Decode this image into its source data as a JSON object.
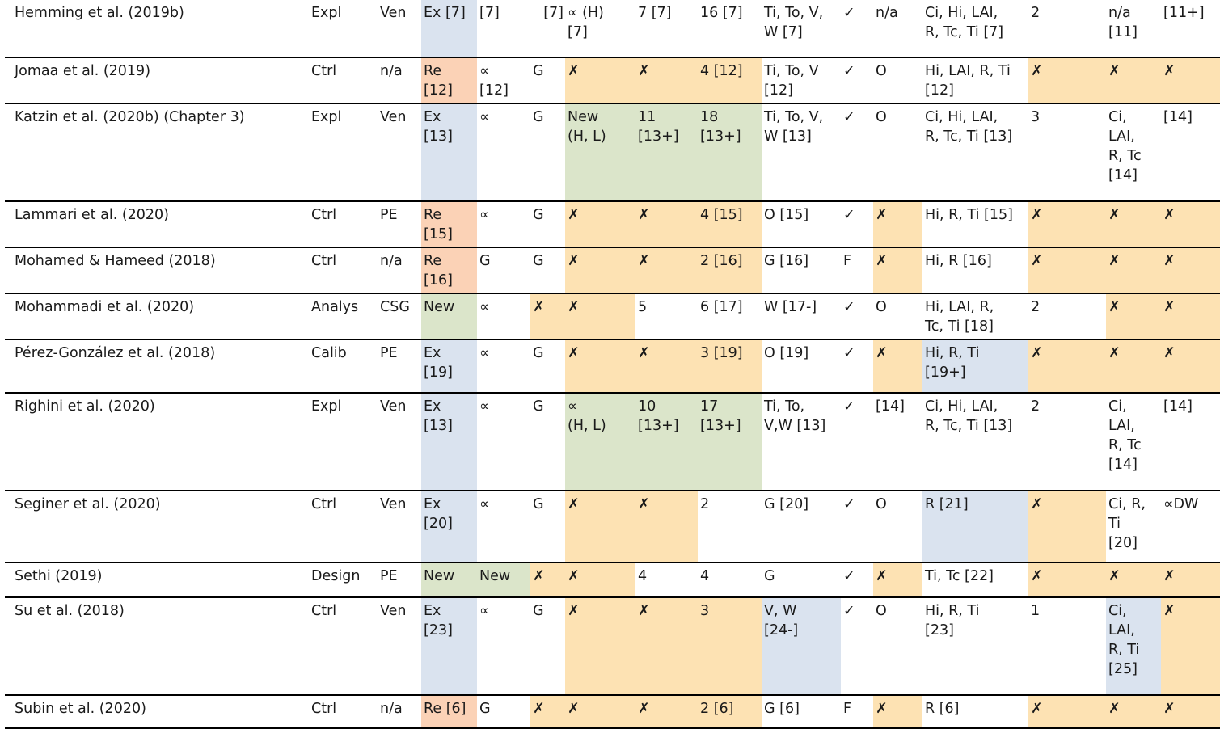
{
  "colors": {
    "blue": "#dae3ef",
    "orange": "#fde2b3",
    "salmon": "#fbd2b6",
    "green": "#dbe5ca"
  },
  "rows": [
    {
      "cells": [
        {
          "t": "Hemming et al. (2019b)"
        },
        {
          "t": "Expl"
        },
        {
          "t": "Ven"
        },
        {
          "t": "Ex [7]",
          "c": "blue"
        },
        {
          "t": "[7]"
        },
        {
          "t": "[7]",
          "a": "right"
        },
        {
          "t": "∝ (H)\n[7]"
        },
        {
          "t": "7 [7]"
        },
        {
          "t": "16 [7]"
        },
        {
          "t": "Ti, To, V,\nW [7]"
        },
        {
          "t": "✓"
        },
        {
          "t": "n/a"
        },
        {
          "t": "Ci, Hi, LAI,\nR, Tc, Ti [7]"
        },
        {
          "t": "2"
        },
        {
          "t": "n/a\n[11]"
        },
        {
          "t": "[11+]"
        }
      ]
    },
    {
      "cells": [
        {
          "t": "Jomaa et al. (2019)"
        },
        {
          "t": "Ctrl"
        },
        {
          "t": "n/a"
        },
        {
          "t": "Re\n[12]",
          "c": "salmon"
        },
        {
          "t": "∝\n[12]"
        },
        {
          "t": "G"
        },
        {
          "t": "✗",
          "c": "orange"
        },
        {
          "t": "✗",
          "c": "orange"
        },
        {
          "t": "4 [12]",
          "c": "orange"
        },
        {
          "t": "Ti, To, V\n[12]"
        },
        {
          "t": "✓"
        },
        {
          "t": "O"
        },
        {
          "t": "Hi, LAI, R, Ti\n[12]"
        },
        {
          "t": "✗",
          "c": "orange"
        },
        {
          "t": "✗",
          "c": "orange"
        },
        {
          "t": "✗",
          "c": "orange"
        }
      ]
    },
    {
      "cells": [
        {
          "t": "Katzin et al. (2020b) (Chapter 3)"
        },
        {
          "t": "Expl"
        },
        {
          "t": "Ven"
        },
        {
          "t": "Ex\n[13]",
          "c": "blue"
        },
        {
          "t": "∝"
        },
        {
          "t": "G"
        },
        {
          "t": "New\n(H, L)",
          "c": "green"
        },
        {
          "t": "11\n[13+]",
          "c": "green"
        },
        {
          "t": "18\n[13+]",
          "c": "green"
        },
        {
          "t": "Ti, To, V,\nW [13]"
        },
        {
          "t": "✓"
        },
        {
          "t": "O"
        },
        {
          "t": "Ci, Hi, LAI,\nR, Tc, Ti [13]"
        },
        {
          "t": "3"
        },
        {
          "t": "Ci,\nLAI,\nR, Tc\n[14]"
        },
        {
          "t": "[14]"
        }
      ]
    },
    {
      "cells": [
        {
          "t": "Lammari et al. (2020)"
        },
        {
          "t": "Ctrl"
        },
        {
          "t": "PE"
        },
        {
          "t": "Re\n[15]",
          "c": "salmon"
        },
        {
          "t": "∝"
        },
        {
          "t": "G"
        },
        {
          "t": "✗",
          "c": "orange"
        },
        {
          "t": "✗",
          "c": "orange"
        },
        {
          "t": "4 [15]",
          "c": "orange"
        },
        {
          "t": "O [15]"
        },
        {
          "t": "✓"
        },
        {
          "t": "✗",
          "c": "orange"
        },
        {
          "t": "Hi, R, Ti [15]"
        },
        {
          "t": "✗",
          "c": "orange"
        },
        {
          "t": "✗",
          "c": "orange"
        },
        {
          "t": "✗",
          "c": "orange"
        }
      ]
    },
    {
      "cells": [
        {
          "t": "Mohamed & Hameed (2018)"
        },
        {
          "t": "Ctrl"
        },
        {
          "t": "n/a"
        },
        {
          "t": "Re\n[16]",
          "c": "salmon"
        },
        {
          "t": "G"
        },
        {
          "t": "G"
        },
        {
          "t": "✗",
          "c": "orange"
        },
        {
          "t": "✗",
          "c": "orange"
        },
        {
          "t": "2 [16]",
          "c": "orange"
        },
        {
          "t": "G [16]"
        },
        {
          "t": "F"
        },
        {
          "t": "✗",
          "c": "orange"
        },
        {
          "t": "Hi, R [16]"
        },
        {
          "t": "✗",
          "c": "orange"
        },
        {
          "t": "✗",
          "c": "orange"
        },
        {
          "t": "✗",
          "c": "orange"
        }
      ]
    },
    {
      "cells": [
        {
          "t": "Mohammadi et al. (2020)"
        },
        {
          "t": "Analys"
        },
        {
          "t": "CSG"
        },
        {
          "t": "New",
          "c": "green"
        },
        {
          "t": "∝"
        },
        {
          "t": "✗",
          "c": "orange"
        },
        {
          "t": "✗",
          "c": "orange"
        },
        {
          "t": "5"
        },
        {
          "t": "6 [17]"
        },
        {
          "t": "W [17-]"
        },
        {
          "t": "✓"
        },
        {
          "t": "O"
        },
        {
          "t": "Hi, LAI, R,\nTc, Ti [18]"
        },
        {
          "t": "2"
        },
        {
          "t": "✗",
          "c": "orange"
        },
        {
          "t": "✗",
          "c": "orange"
        }
      ]
    },
    {
      "cells": [
        {
          "t": "Pérez-González et al. (2018)"
        },
        {
          "t": "Calib"
        },
        {
          "t": "PE"
        },
        {
          "t": "Ex\n[19]",
          "c": "blue"
        },
        {
          "t": "∝"
        },
        {
          "t": "G"
        },
        {
          "t": "✗",
          "c": "orange"
        },
        {
          "t": "✗",
          "c": "orange"
        },
        {
          "t": "3 [19]",
          "c": "orange"
        },
        {
          "t": "O [19]"
        },
        {
          "t": "✓"
        },
        {
          "t": "✗",
          "c": "orange"
        },
        {
          "t": "Hi, R, Ti\n[19+]",
          "c": "blue"
        },
        {
          "t": "✗",
          "c": "orange"
        },
        {
          "t": "✗",
          "c": "orange"
        },
        {
          "t": "✗",
          "c": "orange"
        }
      ]
    },
    {
      "cells": [
        {
          "t": "Righini et al. (2020)"
        },
        {
          "t": "Expl"
        },
        {
          "t": "Ven"
        },
        {
          "t": "Ex\n[13]",
          "c": "blue"
        },
        {
          "t": "∝"
        },
        {
          "t": "G"
        },
        {
          "t": "∝\n(H, L)",
          "c": "green"
        },
        {
          "t": "10\n[13+]",
          "c": "green"
        },
        {
          "t": "17\n[13+]",
          "c": "green"
        },
        {
          "t": "Ti, To,\nV,W [13]"
        },
        {
          "t": "✓"
        },
        {
          "t": "[14]"
        },
        {
          "t": "Ci, Hi, LAI,\nR, Tc, Ti [13]"
        },
        {
          "t": "2"
        },
        {
          "t": "Ci,\nLAI,\nR, Tc\n[14]"
        },
        {
          "t": "[14]"
        }
      ]
    },
    {
      "cells": [
        {
          "t": "Seginer et al. (2020)"
        },
        {
          "t": "Ctrl"
        },
        {
          "t": "Ven"
        },
        {
          "t": "Ex\n[20]",
          "c": "blue"
        },
        {
          "t": "∝"
        },
        {
          "t": "G"
        },
        {
          "t": "✗",
          "c": "orange"
        },
        {
          "t": "✗",
          "c": "orange"
        },
        {
          "t": "2"
        },
        {
          "t": "G [20]"
        },
        {
          "t": "✓"
        },
        {
          "t": "O"
        },
        {
          "t": "R [21]",
          "c": "blue"
        },
        {
          "t": "✗",
          "c": "orange"
        },
        {
          "t": "Ci, R,\nTi\n[20]"
        },
        {
          "t": "∝DW"
        }
      ]
    },
    {
      "cells": [
        {
          "t": "Sethi (2019)"
        },
        {
          "t": "Design"
        },
        {
          "t": "PE"
        },
        {
          "t": "New",
          "c": "green"
        },
        {
          "t": "New",
          "c": "green"
        },
        {
          "t": "✗",
          "c": "orange"
        },
        {
          "t": "✗",
          "c": "orange"
        },
        {
          "t": "4"
        },
        {
          "t": "4"
        },
        {
          "t": "G"
        },
        {
          "t": "✓"
        },
        {
          "t": "✗",
          "c": "orange"
        },
        {
          "t": "Ti, Tc [22]"
        },
        {
          "t": "✗",
          "c": "orange"
        },
        {
          "t": "✗",
          "c": "orange"
        },
        {
          "t": "✗",
          "c": "orange"
        }
      ]
    },
    {
      "cells": [
        {
          "t": "Su et al. (2018)"
        },
        {
          "t": "Ctrl"
        },
        {
          "t": "Ven"
        },
        {
          "t": "Ex\n[23]",
          "c": "blue"
        },
        {
          "t": "∝"
        },
        {
          "t": "G"
        },
        {
          "t": "✗",
          "c": "orange"
        },
        {
          "t": "✗",
          "c": "orange"
        },
        {
          "t": "3",
          "c": "orange"
        },
        {
          "t": "V, W\n[24-]",
          "c": "blue"
        },
        {
          "t": "✓"
        },
        {
          "t": "O"
        },
        {
          "t": " Hi, R, Ti\n[23]"
        },
        {
          "t": "1"
        },
        {
          "t": "Ci,\nLAI,\nR, Ti\n[25]",
          "c": "blue"
        },
        {
          "t": "✗",
          "c": "orange"
        }
      ]
    },
    {
      "cells": [
        {
          "t": "Subin et al. (2020)"
        },
        {
          "t": "Ctrl"
        },
        {
          "t": "n/a"
        },
        {
          "t": "Re [6]",
          "c": "salmon"
        },
        {
          "t": "G"
        },
        {
          "t": "✗",
          "c": "orange"
        },
        {
          "t": "✗",
          "c": "orange"
        },
        {
          "t": "✗",
          "c": "orange"
        },
        {
          "t": "2 [6]",
          "c": "orange"
        },
        {
          "t": "G [6]"
        },
        {
          "t": "F"
        },
        {
          "t": "✗",
          "c": "orange"
        },
        {
          "t": "R [6]"
        },
        {
          "t": "✗",
          "c": "orange"
        },
        {
          "t": "✗",
          "c": "orange"
        },
        {
          "t": "✗",
          "c": "orange"
        }
      ]
    }
  ]
}
